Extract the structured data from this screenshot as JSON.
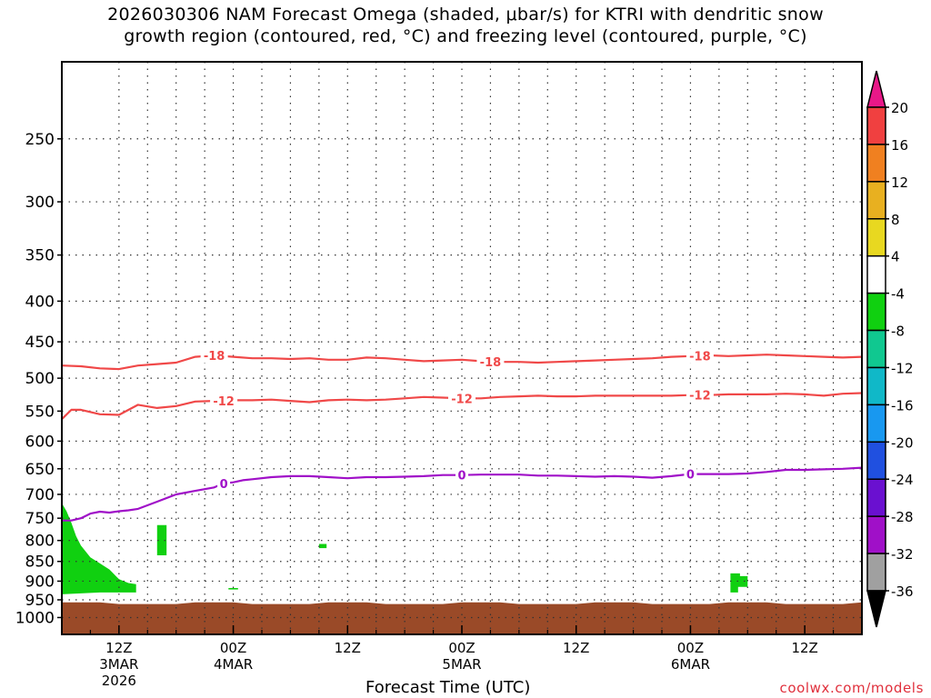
{
  "title_lines": [
    "2026030306 NAM Forecast Omega (shaded, μbar/s) for KTRI with dendritic snow",
    "growth region (contoured, red, °C) and freezing level (contoured, purple, °C)"
  ],
  "credit": "coolwx.com/models",
  "chart_data": {
    "type": "heatmap",
    "title": "2026030306 NAM Forecast Omega (shaded, μbar/s) for KTRI with dendritic snow growth region (contoured, red, °C) and freezing level (contoured, purple, °C)",
    "xlabel": "Forecast Time (UTC)",
    "ylabel": "",
    "x_unit": "hours since 2026-03-03 06Z",
    "xlim": [
      0,
      84
    ],
    "y_scale": "log",
    "ylim": [
      1050,
      200
    ],
    "yticks": [
      250,
      300,
      350,
      400,
      450,
      500,
      550,
      600,
      650,
      700,
      750,
      800,
      850,
      900,
      950,
      1000
    ],
    "xticks": [
      {
        "hour": 6,
        "lines": [
          "12Z",
          "3MAR",
          "2026"
        ]
      },
      {
        "hour": 18,
        "lines": [
          "00Z",
          "4MAR"
        ]
      },
      {
        "hour": 30,
        "lines": [
          "12Z"
        ]
      },
      {
        "hour": 42,
        "lines": [
          "00Z",
          "5MAR"
        ]
      },
      {
        "hour": 54,
        "lines": [
          "12Z"
        ]
      },
      {
        "hour": 66,
        "lines": [
          "00Z",
          "6MAR"
        ]
      },
      {
        "hour": 78,
        "lines": [
          "12Z"
        ]
      }
    ],
    "grid": true,
    "colorbar": {
      "levels": [
        "-36",
        "-32",
        "-28",
        "-24",
        "-20",
        "-16",
        "-12",
        "-8",
        "-4",
        "4",
        "8",
        "12",
        "16",
        "20"
      ],
      "colors": [
        "#000000",
        "#a0a0a0",
        "#a010c8",
        "#6a10d0",
        "#2050e0",
        "#1898f0",
        "#10b8c8",
        "#10c890",
        "#10d010",
        "#ffffff",
        "#e8d820",
        "#e8b020",
        "#f08020",
        "#f04040",
        "#e81888"
      ]
    },
    "contours": [
      {
        "label": "-18",
        "color": "#f04848",
        "x": [
          0,
          2,
          4,
          6,
          8,
          10,
          12,
          14,
          16,
          18,
          20,
          22,
          24,
          26,
          28,
          30,
          32,
          34,
          36,
          38,
          40,
          42,
          44,
          46,
          48,
          50,
          52,
          54,
          56,
          58,
          60,
          62,
          64,
          66,
          68,
          70,
          72,
          74,
          76,
          78,
          80,
          82,
          84
        ],
        "y": [
          482,
          483,
          486,
          487,
          482,
          480,
          478,
          470,
          468,
          470,
          472,
          472,
          473,
          472,
          474,
          474,
          471,
          472,
          474,
          476,
          475,
          474,
          476,
          477,
          477,
          478,
          477,
          476,
          475,
          474,
          473,
          472,
          470,
          469,
          468,
          469,
          468,
          467,
          468,
          469,
          470,
          471,
          470
        ]
      },
      {
        "label": "-12",
        "color": "#f04848",
        "x": [
          0,
          1,
          2,
          4,
          6,
          8,
          10,
          12,
          14,
          16,
          18,
          20,
          22,
          24,
          26,
          28,
          30,
          32,
          34,
          36,
          38,
          40,
          42,
          44,
          46,
          48,
          50,
          52,
          54,
          56,
          58,
          60,
          62,
          64,
          66,
          68,
          70,
          72,
          74,
          76,
          78,
          80,
          82,
          84
        ],
        "y": [
          563,
          548,
          548,
          555,
          556,
          540,
          545,
          542,
          535,
          534,
          533,
          533,
          532,
          534,
          536,
          533,
          532,
          533,
          532,
          530,
          528,
          529,
          530,
          530,
          528,
          527,
          526,
          527,
          527,
          526,
          526,
          526,
          526,
          526,
          525,
          525,
          524,
          524,
          524,
          523,
          524,
          526,
          523,
          522
        ]
      },
      {
        "label": "0",
        "color": "#a010c8",
        "x": [
          0,
          1,
          2,
          3,
          4,
          5,
          6,
          7,
          8,
          10,
          12,
          14,
          16,
          17,
          18,
          19,
          20,
          22,
          24,
          26,
          28,
          30,
          32,
          34,
          36,
          38,
          40,
          42,
          44,
          46,
          48,
          50,
          52,
          54,
          56,
          58,
          60,
          62,
          64,
          66,
          68,
          70,
          72,
          74,
          76,
          78,
          80,
          82,
          84
        ],
        "y": [
          755,
          755,
          750,
          740,
          736,
          738,
          735,
          733,
          730,
          715,
          700,
          693,
          686,
          678,
          676,
          672,
          670,
          666,
          664,
          664,
          666,
          668,
          666,
          666,
          665,
          664,
          662,
          662,
          661,
          661,
          661,
          663,
          663,
          664,
          665,
          664,
          665,
          667,
          664,
          660,
          660,
          660,
          659,
          656,
          652,
          652,
          651,
          650,
          648
        ]
      }
    ],
    "omega_regions": [
      {
        "value_range": [
          -8,
          -4
        ],
        "color": "#10d010",
        "polygon": [
          [
            0,
            718
          ],
          [
            0.5,
            735
          ],
          [
            1,
            760
          ],
          [
            1.5,
            790
          ],
          [
            2,
            812
          ],
          [
            3,
            840
          ],
          [
            4,
            855
          ],
          [
            5,
            870
          ],
          [
            6,
            895
          ],
          [
            7,
            905
          ],
          [
            7.8,
            908
          ],
          [
            7.8,
            930
          ],
          [
            4,
            930
          ],
          [
            0,
            935
          ]
        ]
      },
      {
        "value_range": [
          -8,
          -4
        ],
        "color": "#10d010",
        "polygon": [
          [
            10,
            765
          ],
          [
            11,
            765
          ],
          [
            11,
            835
          ],
          [
            10,
            835
          ]
        ]
      },
      {
        "value_range": [
          -8,
          -4
        ],
        "color": "#10d010",
        "polygon": [
          [
            27,
            808
          ],
          [
            27.8,
            808
          ],
          [
            27.8,
            818
          ],
          [
            27,
            818
          ]
        ]
      },
      {
        "value_range": [
          -8,
          -4
        ],
        "color": "#10d010",
        "polygon": [
          [
            17.5,
            918
          ],
          [
            18.5,
            918
          ],
          [
            18.5,
            922
          ],
          [
            17.5,
            922
          ]
        ]
      },
      {
        "value_range": [
          -8,
          -4
        ],
        "color": "#10d010",
        "polygon": [
          [
            70.2,
            880
          ],
          [
            71.2,
            880
          ],
          [
            71.2,
            887
          ],
          [
            72,
            887
          ],
          [
            72,
            915
          ],
          [
            71,
            915
          ],
          [
            71,
            930
          ],
          [
            70.2,
            930
          ]
        ]
      }
    ],
    "terrain": {
      "color": "#9a4a28",
      "surface_pressure": 960,
      "bottom": 1050
    }
  },
  "x_title": "Forecast Time (UTC)"
}
